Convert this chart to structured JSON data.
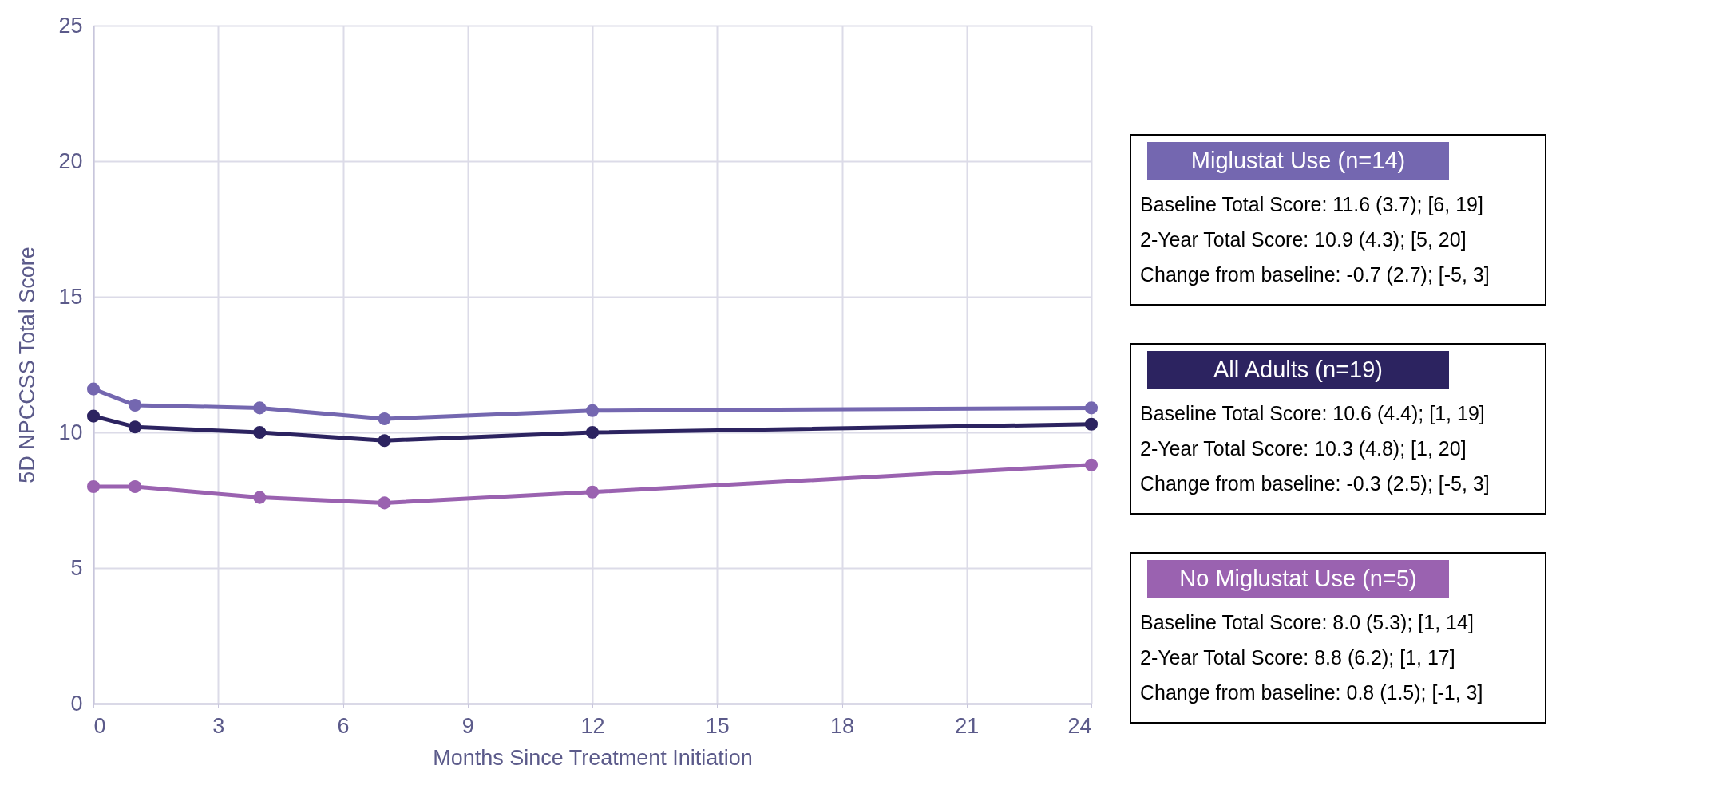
{
  "chart_data": {
    "type": "line",
    "xlabel": "Months Since Treatment Initiation",
    "ylabel": "5D NPCCSS Total Score",
    "x": [
      0,
      1,
      4,
      7,
      12,
      24
    ],
    "series": [
      {
        "name": "Miglustat Use (n=14)",
        "color": "#7467b0",
        "values": [
          11.6,
          11.0,
          10.9,
          10.5,
          10.8,
          10.9
        ]
      },
      {
        "name": "All Adults (n=19)",
        "color": "#2c2360",
        "values": [
          10.6,
          10.2,
          10.0,
          9.7,
          10.0,
          10.3
        ]
      },
      {
        "name": "No Miglustat Use (n=5)",
        "color": "#9a62b0",
        "values": [
          8.0,
          8.0,
          7.6,
          7.4,
          7.8,
          8.8
        ]
      }
    ],
    "xlim": [
      0,
      24
    ],
    "xticks": [
      0,
      3,
      6,
      9,
      12,
      15,
      18,
      21,
      24
    ],
    "ylim": [
      0,
      25
    ],
    "yticks": [
      0,
      5,
      10,
      15,
      20,
      25
    ],
    "grid": true,
    "marker": "circle",
    "legend": "right",
    "annotations": [
      "Baseline Total Score: 11.6 (3.7); [6, 19]",
      "2-Year Total Score: 10.9 (4.3); [5, 20]",
      "Change from baseline: -0.7 (2.7); [-5, 3]",
      "Baseline Total Score: 10.6 (4.4); [1, 19]",
      "2-Year Total Score: 10.3 (4.8); [1, 20]",
      "Change from baseline: -0.3 (2.5); [-5, 3]",
      "Baseline Total Score: 8.0 (5.3); [1, 14]",
      "2-Year Total Score: 8.8 (6.2); [1, 17]",
      "Change from baseline: 0.8 (1.5); [-1, 3]"
    ]
  }
}
